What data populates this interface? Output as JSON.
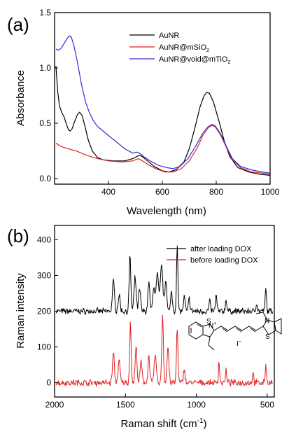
{
  "chart_data": [
    {
      "type": "line",
      "panel_label": "(a)",
      "xlabel": "Wavelength (nm)",
      "ylabel": "Absorbance",
      "xlim": [
        200,
        1000
      ],
      "ylim": [
        -0.05,
        1.5
      ],
      "xticks": [
        400,
        600,
        800,
        1000
      ],
      "yticks": [
        0.0,
        0.5,
        1.0,
        1.5
      ],
      "ytick_labels": [
        "0.0",
        "0.5",
        "1.0",
        "1.5"
      ],
      "legend_position": "top-right",
      "series": [
        {
          "name": "AuNR",
          "name_parts": [
            "AuNR",
            "",
            ""
          ],
          "color": "#000000",
          "points": [
            [
              205,
              1.02
            ],
            [
              212,
              0.78
            ],
            [
              218,
              0.66
            ],
            [
              226,
              0.6
            ],
            [
              235,
              0.56
            ],
            [
              244,
              0.49
            ],
            [
              252,
              0.44
            ],
            [
              258,
              0.43
            ],
            [
              265,
              0.45
            ],
            [
              275,
              0.52
            ],
            [
              285,
              0.58
            ],
            [
              293,
              0.6
            ],
            [
              302,
              0.57
            ],
            [
              312,
              0.48
            ],
            [
              325,
              0.35
            ],
            [
              340,
              0.25
            ],
            [
              360,
              0.19
            ],
            [
              380,
              0.17
            ],
            [
              420,
              0.16
            ],
            [
              460,
              0.16
            ],
            [
              490,
              0.18
            ],
            [
              505,
              0.2
            ],
            [
              515,
              0.21
            ],
            [
              525,
              0.2
            ],
            [
              545,
              0.16
            ],
            [
              570,
              0.11
            ],
            [
              600,
              0.07
            ],
            [
              625,
              0.06
            ],
            [
              650,
              0.08
            ],
            [
              680,
              0.15
            ],
            [
              700,
              0.27
            ],
            [
              720,
              0.45
            ],
            [
              740,
              0.65
            ],
            [
              755,
              0.75
            ],
            [
              765,
              0.78
            ],
            [
              775,
              0.77
            ],
            [
              790,
              0.69
            ],
            [
              810,
              0.52
            ],
            [
              830,
              0.34
            ],
            [
              850,
              0.2
            ],
            [
              880,
              0.1
            ],
            [
              920,
              0.06
            ],
            [
              960,
              0.04
            ],
            [
              1000,
              0.03
            ]
          ]
        },
        {
          "name": "AuNR@mSiO2",
          "name_parts": [
            "AuNR@mSiO",
            "2",
            ""
          ],
          "color": "#e02020",
          "points": [
            [
              205,
              0.32
            ],
            [
              225,
              0.29
            ],
            [
              250,
              0.27
            ],
            [
              280,
              0.25
            ],
            [
              320,
              0.21
            ],
            [
              360,
              0.18
            ],
            [
              400,
              0.16
            ],
            [
              450,
              0.15
            ],
            [
              490,
              0.16
            ],
            [
              510,
              0.18
            ],
            [
              520,
              0.17
            ],
            [
              545,
              0.13
            ],
            [
              575,
              0.09
            ],
            [
              610,
              0.06
            ],
            [
              640,
              0.06
            ],
            [
              670,
              0.09
            ],
            [
              700,
              0.16
            ],
            [
              730,
              0.28
            ],
            [
              750,
              0.39
            ],
            [
              770,
              0.46
            ],
            [
              785,
              0.48
            ],
            [
              795,
              0.47
            ],
            [
              815,
              0.4
            ],
            [
              840,
              0.27
            ],
            [
              860,
              0.17
            ],
            [
              890,
              0.1
            ],
            [
              930,
              0.06
            ],
            [
              970,
              0.05
            ],
            [
              1000,
              0.04
            ]
          ]
        },
        {
          "name": "AuNR@void@mTiO2",
          "name_parts": [
            "AuNR@void@mTiO",
            "2",
            ""
          ],
          "color": "#2f2fd8",
          "points": [
            [
              205,
              1.17
            ],
            [
              215,
              1.16
            ],
            [
              225,
              1.18
            ],
            [
              235,
              1.22
            ],
            [
              245,
              1.26
            ],
            [
              255,
              1.29
            ],
            [
              262,
              1.28
            ],
            [
              272,
              1.2
            ],
            [
              285,
              1.05
            ],
            [
              300,
              0.85
            ],
            [
              315,
              0.69
            ],
            [
              330,
              0.59
            ],
            [
              345,
              0.52
            ],
            [
              360,
              0.47
            ],
            [
              380,
              0.43
            ],
            [
              400,
              0.39
            ],
            [
              430,
              0.33
            ],
            [
              460,
              0.27
            ],
            [
              490,
              0.23
            ],
            [
              505,
              0.24
            ],
            [
              515,
              0.23
            ],
            [
              530,
              0.2
            ],
            [
              555,
              0.16
            ],
            [
              585,
              0.12
            ],
            [
              615,
              0.1
            ],
            [
              640,
              0.09
            ],
            [
              665,
              0.11
            ],
            [
              695,
              0.18
            ],
            [
              725,
              0.3
            ],
            [
              750,
              0.41
            ],
            [
              770,
              0.47
            ],
            [
              785,
              0.49
            ],
            [
              795,
              0.48
            ],
            [
              815,
              0.41
            ],
            [
              840,
              0.28
            ],
            [
              860,
              0.18
            ],
            [
              890,
              0.11
            ],
            [
              930,
              0.08
            ],
            [
              970,
              0.06
            ],
            [
              1000,
              0.05
            ]
          ]
        }
      ]
    },
    {
      "type": "line",
      "panel_label": "(b)",
      "xlabel": "Raman shift (cm",
      "xlabel_sup": "-1",
      "xlabel_end": ")",
      "ylabel": "Raman intensity",
      "xlim": [
        2000,
        450
      ],
      "ylim": [
        -40,
        440
      ],
      "xticks": [
        2000,
        1500,
        1000,
        500
      ],
      "yticks": [
        0,
        100,
        200,
        300,
        400
      ],
      "legend_position": "top-right",
      "series": [
        {
          "name": "after loading DOX",
          "name_parts": [
            "after loading DOX",
            "",
            ""
          ],
          "color": "#000000",
          "baseline": 200,
          "peaks": [
            [
              1585,
              85,
              10
            ],
            [
              1545,
              45,
              10
            ],
            [
              1468,
              155,
              8
            ],
            [
              1432,
              95,
              10
            ],
            [
              1400,
              60,
              10
            ],
            [
              1335,
              85,
              9
            ],
            [
              1300,
              70,
              10
            ],
            [
              1275,
              105,
              12
            ],
            [
              1245,
              130,
              12
            ],
            [
              1215,
              90,
              10
            ],
            [
              1175,
              55,
              8
            ],
            [
              1135,
              185,
              7
            ],
            [
              1085,
              40,
              8
            ],
            [
              1050,
              35,
              8
            ],
            [
              905,
              30,
              7
            ],
            [
              860,
              45,
              7
            ],
            [
              790,
              35,
              7
            ],
            [
              575,
              25,
              7
            ],
            [
              510,
              65,
              6
            ]
          ]
        },
        {
          "name": "before loading DOX",
          "name_parts": [
            "before loading DOX",
            "",
            ""
          ],
          "color": "#e02020",
          "baseline": 0,
          "peaks": [
            [
              1585,
              85,
              9
            ],
            [
              1545,
              60,
              10
            ],
            [
              1465,
              175,
              7
            ],
            [
              1425,
              100,
              9
            ],
            [
              1390,
              60,
              9
            ],
            [
              1335,
              75,
              9
            ],
            [
              1290,
              80,
              10
            ],
            [
              1238,
              190,
              8
            ],
            [
              1200,
              100,
              9
            ],
            [
              1135,
              155,
              7
            ],
            [
              1085,
              40,
              8
            ],
            [
              840,
              60,
              6
            ],
            [
              790,
              35,
              6
            ],
            [
              600,
              30,
              6
            ],
            [
              510,
              50,
              6
            ]
          ]
        }
      ]
    }
  ],
  "molecule": {
    "iodide_label": "I",
    "iodide_sup": "−",
    "n_left": "N",
    "n_left_charge": "+",
    "n_right": "N",
    "s_left": "S",
    "s_right": "S"
  }
}
